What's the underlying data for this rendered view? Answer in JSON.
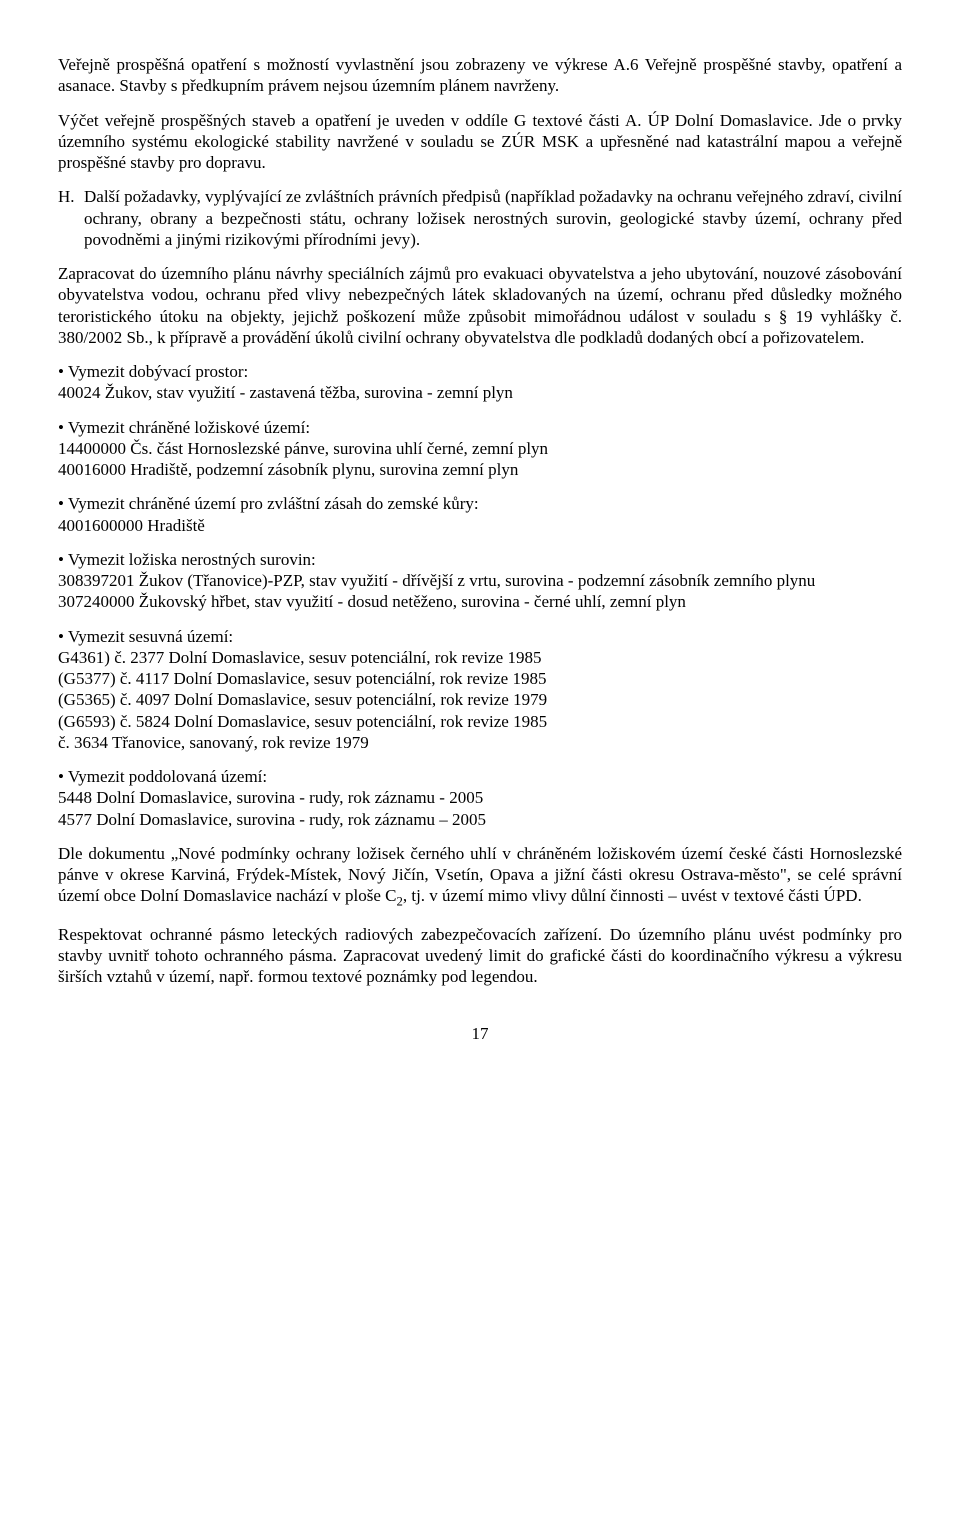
{
  "intro1": "Veřejně prospěšná opatření s možností vyvlastnění jsou zobrazeny ve výkrese A.6 Veřejně prospěšné stavby, opatření a asanace. Stavby s předkupním právem nejsou územním plánem navrženy.",
  "intro2": "Výčet veřejně prospěšných staveb a opatření je uveden v oddíle G textové části A. ÚP Dolní Domaslavice. Jde o prvky územního systému ekologické stability navržené v souladu se ZÚR MSK a upřesněné nad katastrální mapou a veřejně prospěšné stavby pro dopravu.",
  "sectionH": {
    "letter": "H.",
    "body": "Další požadavky, vyplývající ze zvláštních právních předpisů (například požadavky na ochranu veřejného zdraví, civilní ochrany, obrany a bezpečnosti státu, ochrany ložisek nerostných surovin, geologické stavby území, ochrany před povodněmi a jinými rizikovými přírodními jevy)."
  },
  "paraZapracovat": "Zapracovat do územního plánu návrhy speciálních zájmů pro evakuaci obyvatelstva a jeho ubytování, nouzové zásobování obyvatelstva vodou, ochranu před vlivy nebezpečných látek skladovaných na území, ochranu před důsledky možného teroristického útoku na objekty, jejichž poškození může způsobit mimořádnou událost v souladu s § 19 vyhlášky   č. 380/2002 Sb., k přípravě a provádění úkolů civilní ochrany obyvatelstva dle podkladů dodaných obcí a pořizovatelem.",
  "b1": {
    "title": "Vymezit dobývací prostor:",
    "line1": "40024    Žukov, stav využití - zastavená těžba, surovina - zemní plyn"
  },
  "b2": {
    "title": "Vymezit chráněné ložiskové území:",
    "line1": "14400000 Čs. část Hornoslezské pánve, surovina uhlí černé, zemní plyn",
    "line2": "40016000 Hradiště, podzemní zásobník plynu, surovina zemní plyn"
  },
  "b3": {
    "title": "Vymezit chráněné území pro zvláštní zásah do zemské kůry:",
    "line1": "4001600000   Hradiště"
  },
  "b4": {
    "title": "Vymezit ložiska nerostných surovin:",
    "line1": "308397201 Žukov (Třanovice)-PZP, stav využití - dřívější z vrtu, surovina - podzemní zásobník zemního plynu",
    "line2": "307240000 Žukovský hřbet, stav využití - dosud netěženo, surovina - černé uhlí, zemní plyn"
  },
  "b5": {
    "title": "Vymezit sesuvná území:",
    "l1": "G4361) č. 2377 Dolní Domaslavice, sesuv potenciální, rok revize 1985",
    "l2": "(G5377) č. 4117 Dolní Domaslavice, sesuv potenciální, rok revize 1985",
    "l3": "(G5365) č. 4097 Dolní Domaslavice, sesuv potenciální, rok revize 1979",
    "l4": "(G6593) č. 5824 Dolní Domaslavice, sesuv potenciální, rok revize 1985",
    "l5": "č. 3634 Třanovice, sanovaný, rok revize 1979"
  },
  "b6": {
    "title": "Vymezit poddolovaná území:",
    "l1": "5448 Dolní Domaslavice, surovina - rudy, rok záznamu - 2005",
    "l2": "4577 Dolní Domaslavice, surovina - rudy, rok záznamu – 2005"
  },
  "paraDle_pre": "Dle dokumentu „Nové podmínky ochrany ložisek černého uhlí v chráněném ložiskovém území české části Hornoslezské pánve v okrese Karviná, Frýdek-Místek, Nový Jičín, Vsetín, Opava a jižní části okresu Ostrava-město\", se celé správní území obce Dolní Domaslavice nachází v ploše C",
  "paraDle_sub": "2",
  "paraDle_post": ", tj. v území mimo vlivy důlní činnosti – uvést v textové části ÚPD.",
  "paraRespektovat": "Respektovat ochranné pásmo leteckých radiových zabezpečovacích zařízení. Do územního plánu uvést podmínky pro stavby uvnitř tohoto ochranného pásma. Zapracovat uvedený limit do grafické části do koordinačního výkresu a výkresu širších vztahů v území, např.  formou textové poznámky pod legendou.",
  "pageNumber": "17"
}
